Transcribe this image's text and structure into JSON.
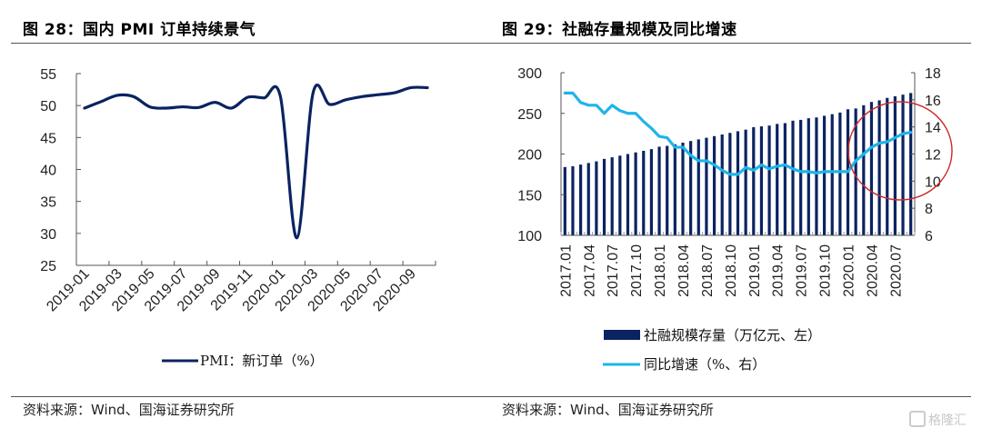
{
  "left_panel": {
    "title": "图 28：国内 PMI 订单持续景气",
    "source": "资料来源：Wind、国海证券研究所"
  },
  "right_panel": {
    "title": "图 29：社融存量规模及同比增速",
    "source": "资料来源：Wind、国海证券研究所"
  },
  "watermark": "格隆汇",
  "colors": {
    "pmi_line": "#0b2361",
    "bar": "#0b2361",
    "growth_line": "#1fb4ea",
    "highlight_circle": "#cc2a2a",
    "axis": "#555555"
  },
  "chart_data": [
    {
      "type": "line",
      "title": "图 28：国内 PMI 订单持续景气",
      "xlabel": "",
      "ylabel": "",
      "ylim": [
        25,
        55
      ],
      "yticks": [
        25,
        30,
        35,
        40,
        45,
        50,
        55
      ],
      "xtick_labels": [
        "2019-01",
        "2019-03",
        "2019-05",
        "2019-07",
        "2019-09",
        "2019-11",
        "2020-01",
        "2020-03",
        "2020-05",
        "2020-07",
        "2020-09"
      ],
      "x": [
        "2019-01",
        "2019-02",
        "2019-03",
        "2019-04",
        "2019-05",
        "2019-06",
        "2019-07",
        "2019-08",
        "2019-09",
        "2019-10",
        "2019-11",
        "2019-12",
        "2020-01",
        "2020-02",
        "2020-03",
        "2020-04",
        "2020-05",
        "2020-06",
        "2020-07",
        "2020-08",
        "2020-09",
        "2020-10"
      ],
      "series": [
        {
          "name": "PMI：新订单（%）",
          "values": [
            49.6,
            50.6,
            51.6,
            51.4,
            49.8,
            49.6,
            49.8,
            49.7,
            50.5,
            49.6,
            51.3,
            51.2,
            51.4,
            29.3,
            52.0,
            50.2,
            50.9,
            51.4,
            51.7,
            52.0,
            52.8,
            52.8
          ]
        }
      ],
      "legend": [
        "PMI：新订单（%）"
      ],
      "legend_position": "bottom",
      "grid": false
    },
    {
      "type": "bar",
      "title": "图 29：社融存量规模及同比增速",
      "xlabel": "",
      "ylabel_left": "",
      "ylabel_right": "",
      "ylim_left": [
        100,
        300
      ],
      "yticks_left": [
        100,
        150,
        200,
        250,
        300
      ],
      "ylim_right": [
        6,
        18
      ],
      "yticks_right": [
        6,
        8,
        10,
        12,
        14,
        16,
        18
      ],
      "xtick_labels": [
        "2017.01",
        "2017.04",
        "2017.07",
        "2017.10",
        "2018.01",
        "2018.04",
        "2018.07",
        "2018.10",
        "2019.01",
        "2019.04",
        "2019.07",
        "2019.10",
        "2020.01",
        "2020.04",
        "2020.07"
      ],
      "x": [
        "2017.01",
        "2017.02",
        "2017.03",
        "2017.04",
        "2017.05",
        "2017.06",
        "2017.07",
        "2017.08",
        "2017.09",
        "2017.10",
        "2017.11",
        "2017.12",
        "2018.01",
        "2018.02",
        "2018.03",
        "2018.04",
        "2018.05",
        "2018.06",
        "2018.07",
        "2018.08",
        "2018.09",
        "2018.10",
        "2018.11",
        "2018.12",
        "2019.01",
        "2019.02",
        "2019.03",
        "2019.04",
        "2019.05",
        "2019.06",
        "2019.07",
        "2019.08",
        "2019.09",
        "2019.10",
        "2019.11",
        "2019.12",
        "2020.01",
        "2020.02",
        "2020.03",
        "2020.04",
        "2020.05",
        "2020.06",
        "2020.07",
        "2020.08",
        "2020.09"
      ],
      "series": [
        {
          "name": "社融规模存量（万亿元、左）",
          "type": "bar",
          "axis": "left",
          "values": [
            184,
            185,
            187,
            189,
            191,
            194,
            196,
            198,
            200,
            202,
            204,
            206,
            209,
            210,
            212,
            214,
            216,
            218,
            220,
            222,
            224,
            226,
            228,
            230,
            233,
            234,
            235,
            237,
            238,
            241,
            242,
            244,
            245,
            247,
            249,
            251,
            255,
            256,
            260,
            264,
            266,
            269,
            271,
            273,
            275
          ]
        },
        {
          "name": "同比增速（%、右）",
          "type": "line",
          "axis": "right",
          "values": [
            16.5,
            16.5,
            15.8,
            15.6,
            15.6,
            15.0,
            15.6,
            15.2,
            15.0,
            15.0,
            14.4,
            13.9,
            13.3,
            13.2,
            12.5,
            12.5,
            11.9,
            11.5,
            11.5,
            11.2,
            10.8,
            10.5,
            10.5,
            11.0,
            10.8,
            11.2,
            10.9,
            11.1,
            11.2,
            10.9,
            10.7,
            10.7,
            10.6,
            10.7,
            10.7,
            10.7,
            10.7,
            11.5,
            12.0,
            12.5,
            12.8,
            12.9,
            13.2,
            13.5,
            13.6
          ]
        }
      ],
      "legend": [
        "社融规模存量（万亿元、左）",
        "同比增速（%、右）"
      ],
      "legend_position": "bottom",
      "annotations": [
        {
          "type": "circle",
          "around": "2020.01–2020.09"
        }
      ],
      "grid": false
    }
  ]
}
